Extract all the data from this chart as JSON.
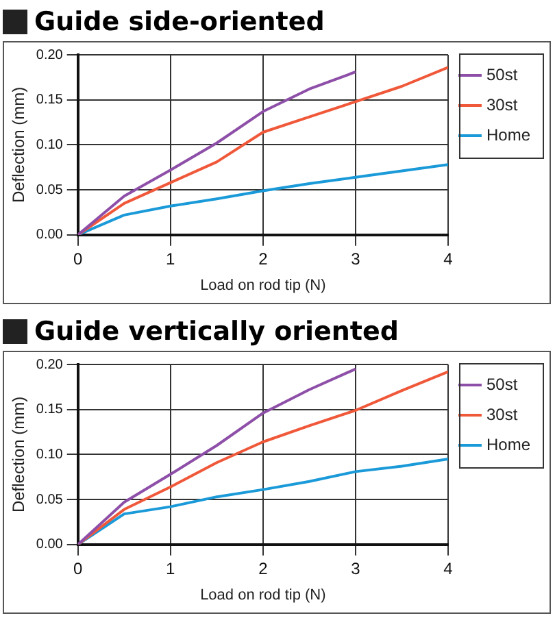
{
  "chart_data": [
    {
      "type": "line",
      "title": "Guide side-oriented",
      "xlabel": "Load on rod tip (N)",
      "ylabel": "Deflection (mm)",
      "x": [
        0,
        0.5,
        1,
        1.5,
        2,
        2.5,
        3,
        3.5,
        4
      ],
      "series": [
        {
          "name": "50st",
          "color": "#8e4fa8",
          "values": [
            0,
            0.043,
            0.072,
            0.102,
            0.137,
            0.162,
            0.181,
            null,
            null
          ]
        },
        {
          "name": "30st",
          "color": "#f0583a",
          "values": [
            0,
            0.035,
            0.058,
            0.081,
            0.114,
            0.131,
            0.148,
            0.165,
            0.186
          ]
        },
        {
          "name": "Home",
          "color": "#1a9ad8",
          "values": [
            0,
            0.022,
            0.032,
            0.04,
            0.049,
            0.057,
            0.064,
            0.071,
            0.078
          ]
        }
      ],
      "xlim": [
        0,
        4
      ],
      "xticks": [
        0,
        1,
        2,
        3,
        4
      ],
      "ylim": [
        0,
        0.2
      ],
      "yticks": [
        {
          "value": 0,
          "label": "0.00"
        },
        {
          "value": 0.05,
          "label": "0.05"
        },
        {
          "value": 0.1,
          "label": "0.10"
        },
        {
          "value": 0.15,
          "label": "0.15"
        },
        {
          "value": 0.2,
          "label": "0.20"
        }
      ],
      "grid": true,
      "legend": "right",
      "marker": "none",
      "line_style": "solid"
    },
    {
      "type": "line",
      "title": "Guide vertically oriented",
      "xlabel": "Load on rod tip (N)",
      "ylabel": "Deflection (mm)",
      "x": [
        0,
        0.5,
        1,
        1.5,
        2,
        2.5,
        3,
        3.5,
        4
      ],
      "series": [
        {
          "name": "50st",
          "color": "#8e4fa8",
          "values": [
            0,
            0.047,
            0.078,
            0.11,
            0.146,
            0.172,
            0.195,
            null,
            null
          ]
        },
        {
          "name": "30st",
          "color": "#f0583a",
          "values": [
            0,
            0.039,
            0.064,
            0.091,
            0.114,
            0.132,
            0.149,
            0.171,
            0.192
          ]
        },
        {
          "name": "Home",
          "color": "#1a9ad8",
          "values": [
            0,
            0.034,
            0.042,
            0.053,
            0.061,
            0.07,
            0.081,
            0.087,
            0.095
          ]
        }
      ],
      "xlim": [
        0,
        4
      ],
      "xticks": [
        0,
        1,
        2,
        3,
        4
      ],
      "ylim": [
        0,
        0.2
      ],
      "yticks": [
        {
          "value": 0,
          "label": "0.00"
        },
        {
          "value": 0.05,
          "label": "0.05"
        },
        {
          "value": 0.1,
          "label": "0.10"
        },
        {
          "value": 0.15,
          "label": "0.15"
        },
        {
          "value": 0.2,
          "label": "0.20"
        }
      ],
      "grid": true,
      "legend": "right",
      "marker": "none",
      "line_style": "solid"
    }
  ]
}
